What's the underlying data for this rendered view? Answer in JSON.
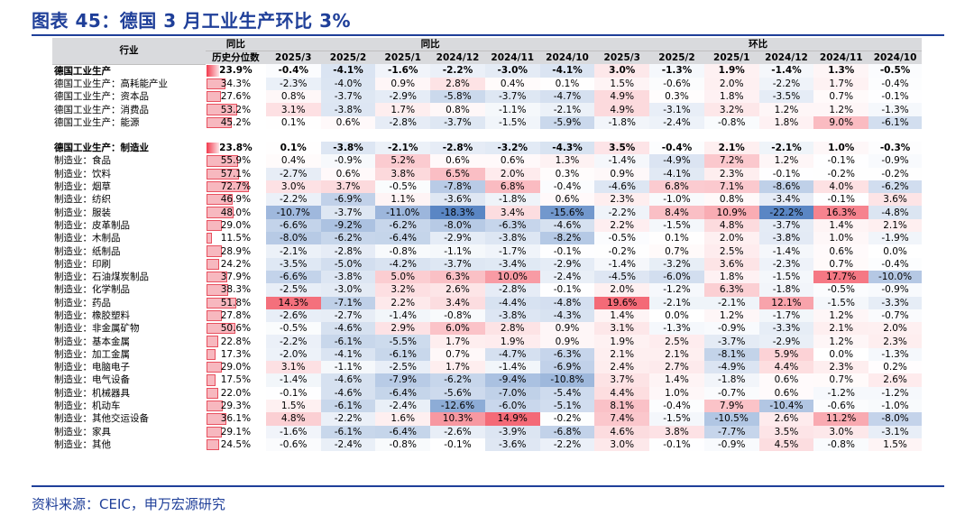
{
  "title": "图表 45：德国 3 月工业生产环比 3%",
  "source": "资料来源：CEIC，申万宏源研究",
  "header": {
    "col_industry": "行业",
    "col_pct_line1": "同比",
    "col_pct_line2": "历史分位数",
    "group_yoy": "同比",
    "group_mom": "环比",
    "periods": [
      "2025/3",
      "2025/2",
      "2025/1",
      "2024/12",
      "2024/11",
      "2024/10"
    ]
  },
  "colors": {
    "title": "#1f3f99",
    "header_bg": "#d9dadd",
    "scale_negative_max": "#5a86c4",
    "scale_neutral": "#ffffff",
    "scale_positive_max": "#f46a77",
    "bar_fill": "#f7b8bf",
    "bar_border": "#e8505f"
  },
  "sections": [
    {
      "rows": [
        {
          "label": "德国工业生产",
          "bold": true,
          "pct": "23.9%",
          "pct_val": 0.239,
          "yoy": [
            "-0.4%",
            "-4.1%",
            "-1.6%",
            "-2.2%",
            "-3.0%",
            "-4.1%"
          ],
          "mom": [
            "3.0%",
            "-1.3%",
            "1.9%",
            "-1.4%",
            "1.3%",
            "-0.5%"
          ]
        },
        {
          "label": "德国工业生产：高耗能产业",
          "pct": "34.3%",
          "pct_val": 0.343,
          "yoy": [
            "-2.3%",
            "-4.0%",
            "0.9%",
            "2.8%",
            "0.4%",
            "0.1%"
          ],
          "mom": [
            "1.5%",
            "-0.6%",
            "2.0%",
            "-2.2%",
            "1.7%",
            "-0.4%"
          ]
        },
        {
          "label": "德国工业生产：资本品",
          "pct": "27.6%",
          "pct_val": 0.276,
          "yoy": [
            "0.8%",
            "-3.7%",
            "-2.9%",
            "-5.8%",
            "-3.7%",
            "-4.7%"
          ],
          "mom": [
            "4.9%",
            "0.3%",
            "1.8%",
            "-3.5%",
            "0.7%",
            "-0.1%"
          ]
        },
        {
          "label": "德国工业生产：消费品",
          "pct": "53.2%",
          "pct_val": 0.532,
          "yoy": [
            "3.1%",
            "-3.8%",
            "1.7%",
            "0.8%",
            "-1.1%",
            "-2.1%"
          ],
          "mom": [
            "4.9%",
            "-3.1%",
            "3.2%",
            "1.2%",
            "1.2%",
            "-1.3%"
          ]
        },
        {
          "label": "德国工业生产：能源",
          "pct": "45.2%",
          "pct_val": 0.452,
          "yoy": [
            "0.1%",
            "0.6%",
            "-2.8%",
            "-3.7%",
            "-1.5%",
            "-5.9%"
          ],
          "mom": [
            "-1.8%",
            "-2.4%",
            "-0.8%",
            "1.8%",
            "9.0%",
            "-6.1%"
          ]
        }
      ]
    },
    {
      "rows": [
        {
          "label": "德国工业生产：制造业",
          "bold": true,
          "pct": "23.8%",
          "pct_val": 0.238,
          "yoy": [
            "0.1%",
            "-3.8%",
            "-2.1%",
            "-2.8%",
            "-3.2%",
            "-4.3%"
          ],
          "mom": [
            "3.5%",
            "-0.4%",
            "2.1%",
            "-2.1%",
            "1.0%",
            "-0.3%"
          ]
        },
        {
          "label": "制造业：食品",
          "pct": "55.9%",
          "pct_val": 0.559,
          "yoy": [
            "0.4%",
            "-0.9%",
            "5.2%",
            "0.6%",
            "0.6%",
            "1.3%"
          ],
          "mom": [
            "-1.4%",
            "-4.9%",
            "7.2%",
            "1.2%",
            "-0.1%",
            "-0.9%"
          ]
        },
        {
          "label": "制造业：饮料",
          "pct": "57.1%",
          "pct_val": 0.571,
          "yoy": [
            "-2.7%",
            "0.6%",
            "3.8%",
            "6.5%",
            "2.0%",
            "0.3%"
          ],
          "mom": [
            "0.9%",
            "-4.1%",
            "2.3%",
            "-0.1%",
            "-0.2%",
            "-0.2%"
          ]
        },
        {
          "label": "制造业：烟草",
          "pct": "72.7%",
          "pct_val": 0.727,
          "yoy": [
            "3.0%",
            "3.7%",
            "-0.5%",
            "-7.8%",
            "6.8%",
            "-0.4%"
          ],
          "mom": [
            "-4.6%",
            "6.8%",
            "7.1%",
            "-8.6%",
            "4.0%",
            "-6.2%"
          ]
        },
        {
          "label": "制造业：纺织",
          "pct": "46.9%",
          "pct_val": 0.469,
          "yoy": [
            "-2.2%",
            "-6.9%",
            "1.1%",
            "-3.6%",
            "-1.8%",
            "0.6%"
          ],
          "mom": [
            "2.3%",
            "-1.0%",
            "0.8%",
            "-3.4%",
            "-0.1%",
            "3.6%"
          ]
        },
        {
          "label": "制造业：服装",
          "pct": "48.0%",
          "pct_val": 0.48,
          "yoy": [
            "-10.7%",
            "-3.7%",
            "-11.0%",
            "-18.3%",
            "3.4%",
            "-15.6%"
          ],
          "mom": [
            "-2.2%",
            "8.4%",
            "10.9%",
            "-22.2%",
            "16.3%",
            "-4.8%"
          ]
        },
        {
          "label": "制造业：皮革制品",
          "pct": "29.0%",
          "pct_val": 0.29,
          "yoy": [
            "-6.6%",
            "-9.2%",
            "-6.2%",
            "-8.0%",
            "-6.3%",
            "-4.6%"
          ],
          "mom": [
            "2.2%",
            "-1.5%",
            "4.8%",
            "-3.7%",
            "1.4%",
            "2.1%"
          ]
        },
        {
          "label": "制造业：木制品",
          "pct": "11.5%",
          "pct_val": 0.115,
          "yoy": [
            "-8.0%",
            "-6.2%",
            "-6.4%",
            "-2.9%",
            "-3.8%",
            "-8.2%"
          ],
          "mom": [
            "-0.5%",
            "0.1%",
            "2.0%",
            "-3.8%",
            "1.0%",
            "-1.9%"
          ]
        },
        {
          "label": "制造业：纸制品",
          "pct": "28.9%",
          "pct_val": 0.289,
          "yoy": [
            "-2.1%",
            "-2.8%",
            "-0.8%",
            "-1.1%",
            "-1.7%",
            "-0.1%"
          ],
          "mom": [
            "-0.2%",
            "0.7%",
            "2.5%",
            "-1.4%",
            "0.6%",
            "0.0%"
          ]
        },
        {
          "label": "制造业：印刷",
          "pct": "24.2%",
          "pct_val": 0.242,
          "yoy": [
            "-3.5%",
            "-5.0%",
            "-4.2%",
            "-3.7%",
            "-3.4%",
            "-2.9%"
          ],
          "mom": [
            "-1.4%",
            "-3.2%",
            "3.6%",
            "-2.3%",
            "0.7%",
            "-0.4%"
          ]
        },
        {
          "label": "制造业：石油煤炭制品",
          "pct": "37.9%",
          "pct_val": 0.379,
          "yoy": [
            "-6.6%",
            "-3.8%",
            "5.0%",
            "6.3%",
            "10.0%",
            "-2.4%"
          ],
          "mom": [
            "-4.5%",
            "-6.0%",
            "1.8%",
            "-1.5%",
            "17.7%",
            "-10.0%"
          ]
        },
        {
          "label": "制造业：化学制品",
          "pct": "38.3%",
          "pct_val": 0.383,
          "yoy": [
            "-2.5%",
            "-3.0%",
            "3.2%",
            "2.6%",
            "-2.8%",
            "-0.1%"
          ],
          "mom": [
            "2.0%",
            "-1.2%",
            "6.3%",
            "-1.8%",
            "-0.5%",
            "-0.9%"
          ]
        },
        {
          "label": "制造业：药品",
          "pct": "51.8%",
          "pct_val": 0.518,
          "yoy": [
            "14.3%",
            "-7.1%",
            "2.2%",
            "3.4%",
            "-4.4%",
            "-4.8%"
          ],
          "mom": [
            "19.6%",
            "-2.1%",
            "-2.1%",
            "12.1%",
            "-1.5%",
            "-3.3%"
          ]
        },
        {
          "label": "制造业：橡胶塑料",
          "pct": "27.8%",
          "pct_val": 0.278,
          "yoy": [
            "-2.6%",
            "-2.7%",
            "-1.4%",
            "-0.8%",
            "-3.8%",
            "-4.3%"
          ],
          "mom": [
            "1.4%",
            "0.0%",
            "1.2%",
            "-1.7%",
            "1.2%",
            "-0.7%"
          ]
        },
        {
          "label": "制造业：非金属矿物",
          "pct": "50.6%",
          "pct_val": 0.506,
          "yoy": [
            "-0.5%",
            "-4.6%",
            "2.9%",
            "6.0%",
            "2.8%",
            "0.9%"
          ],
          "mom": [
            "3.1%",
            "-1.3%",
            "-0.9%",
            "-3.3%",
            "2.1%",
            "2.0%"
          ]
        },
        {
          "label": "制造业：基本金属",
          "pct": "22.8%",
          "pct_val": 0.228,
          "yoy": [
            "-2.2%",
            "-6.1%",
            "-5.5%",
            "1.7%",
            "1.9%",
            "0.9%"
          ],
          "mom": [
            "1.9%",
            "2.5%",
            "-3.7%",
            "-2.9%",
            "1.2%",
            "2.3%"
          ]
        },
        {
          "label": "制造业：加工金属",
          "pct": "17.3%",
          "pct_val": 0.173,
          "yoy": [
            "-2.0%",
            "-4.1%",
            "-6.1%",
            "0.7%",
            "-4.7%",
            "-6.3%"
          ],
          "mom": [
            "2.1%",
            "2.1%",
            "-8.1%",
            "5.9%",
            "0.0%",
            "-1.3%"
          ]
        },
        {
          "label": "制造业：电脑电子",
          "pct": "29.0%",
          "pct_val": 0.29,
          "yoy": [
            "3.1%",
            "-1.1%",
            "-2.5%",
            "1.7%",
            "-1.4%",
            "-6.9%"
          ],
          "mom": [
            "2.4%",
            "2.7%",
            "-4.9%",
            "4.4%",
            "2.3%",
            "0.2%"
          ]
        },
        {
          "label": "制造业：电气设备",
          "pct": "17.5%",
          "pct_val": 0.175,
          "yoy": [
            "-1.4%",
            "-4.6%",
            "-7.9%",
            "-6.2%",
            "-9.4%",
            "-10.8%"
          ],
          "mom": [
            "3.7%",
            "1.4%",
            "-1.8%",
            "0.6%",
            "0.7%",
            "2.6%"
          ]
        },
        {
          "label": "制造业：机械器具",
          "pct": "22.0%",
          "pct_val": 0.22,
          "yoy": [
            "-0.1%",
            "-4.6%",
            "-6.4%",
            "-5.6%",
            "-7.0%",
            "-5.4%"
          ],
          "mom": [
            "4.4%",
            "1.0%",
            "-0.7%",
            "0.6%",
            "-1.2%",
            "-1.2%"
          ]
        },
        {
          "label": "制造业：机动车",
          "pct": "29.3%",
          "pct_val": 0.293,
          "yoy": [
            "1.5%",
            "-6.1%",
            "-2.4%",
            "-12.6%",
            "-6.0%",
            "-5.1%"
          ],
          "mom": [
            "8.1%",
            "-0.4%",
            "7.9%",
            "-10.4%",
            "-0.6%",
            "-1.0%"
          ]
        },
        {
          "label": "制造业：其他交运设备",
          "pct": "36.1%",
          "pct_val": 0.361,
          "yoy": [
            "4.8%",
            "-2.2%",
            "1.6%",
            "10.3%",
            "14.9%",
            "-0.2%"
          ],
          "mom": [
            "7.4%",
            "-1.5%",
            "-10.5%",
            "2.6%",
            "11.2%",
            "-8.0%"
          ]
        },
        {
          "label": "制造业：家具",
          "pct": "29.1%",
          "pct_val": 0.291,
          "yoy": [
            "-1.6%",
            "-6.1%",
            "-6.4%",
            "-2.6%",
            "-3.9%",
            "-6.8%"
          ],
          "mom": [
            "4.6%",
            "3.8%",
            "-7.7%",
            "3.5%",
            "3.0%",
            "-3.1%"
          ]
        },
        {
          "label": "制造业：其他",
          "pct": "24.5%",
          "pct_val": 0.245,
          "yoy": [
            "-0.6%",
            "-2.4%",
            "-0.8%",
            "-0.1%",
            "-3.6%",
            "-2.2%"
          ],
          "mom": [
            "3.0%",
            "-0.1%",
            "-0.9%",
            "4.5%",
            "-0.8%",
            "1.5%"
          ]
        }
      ]
    }
  ]
}
